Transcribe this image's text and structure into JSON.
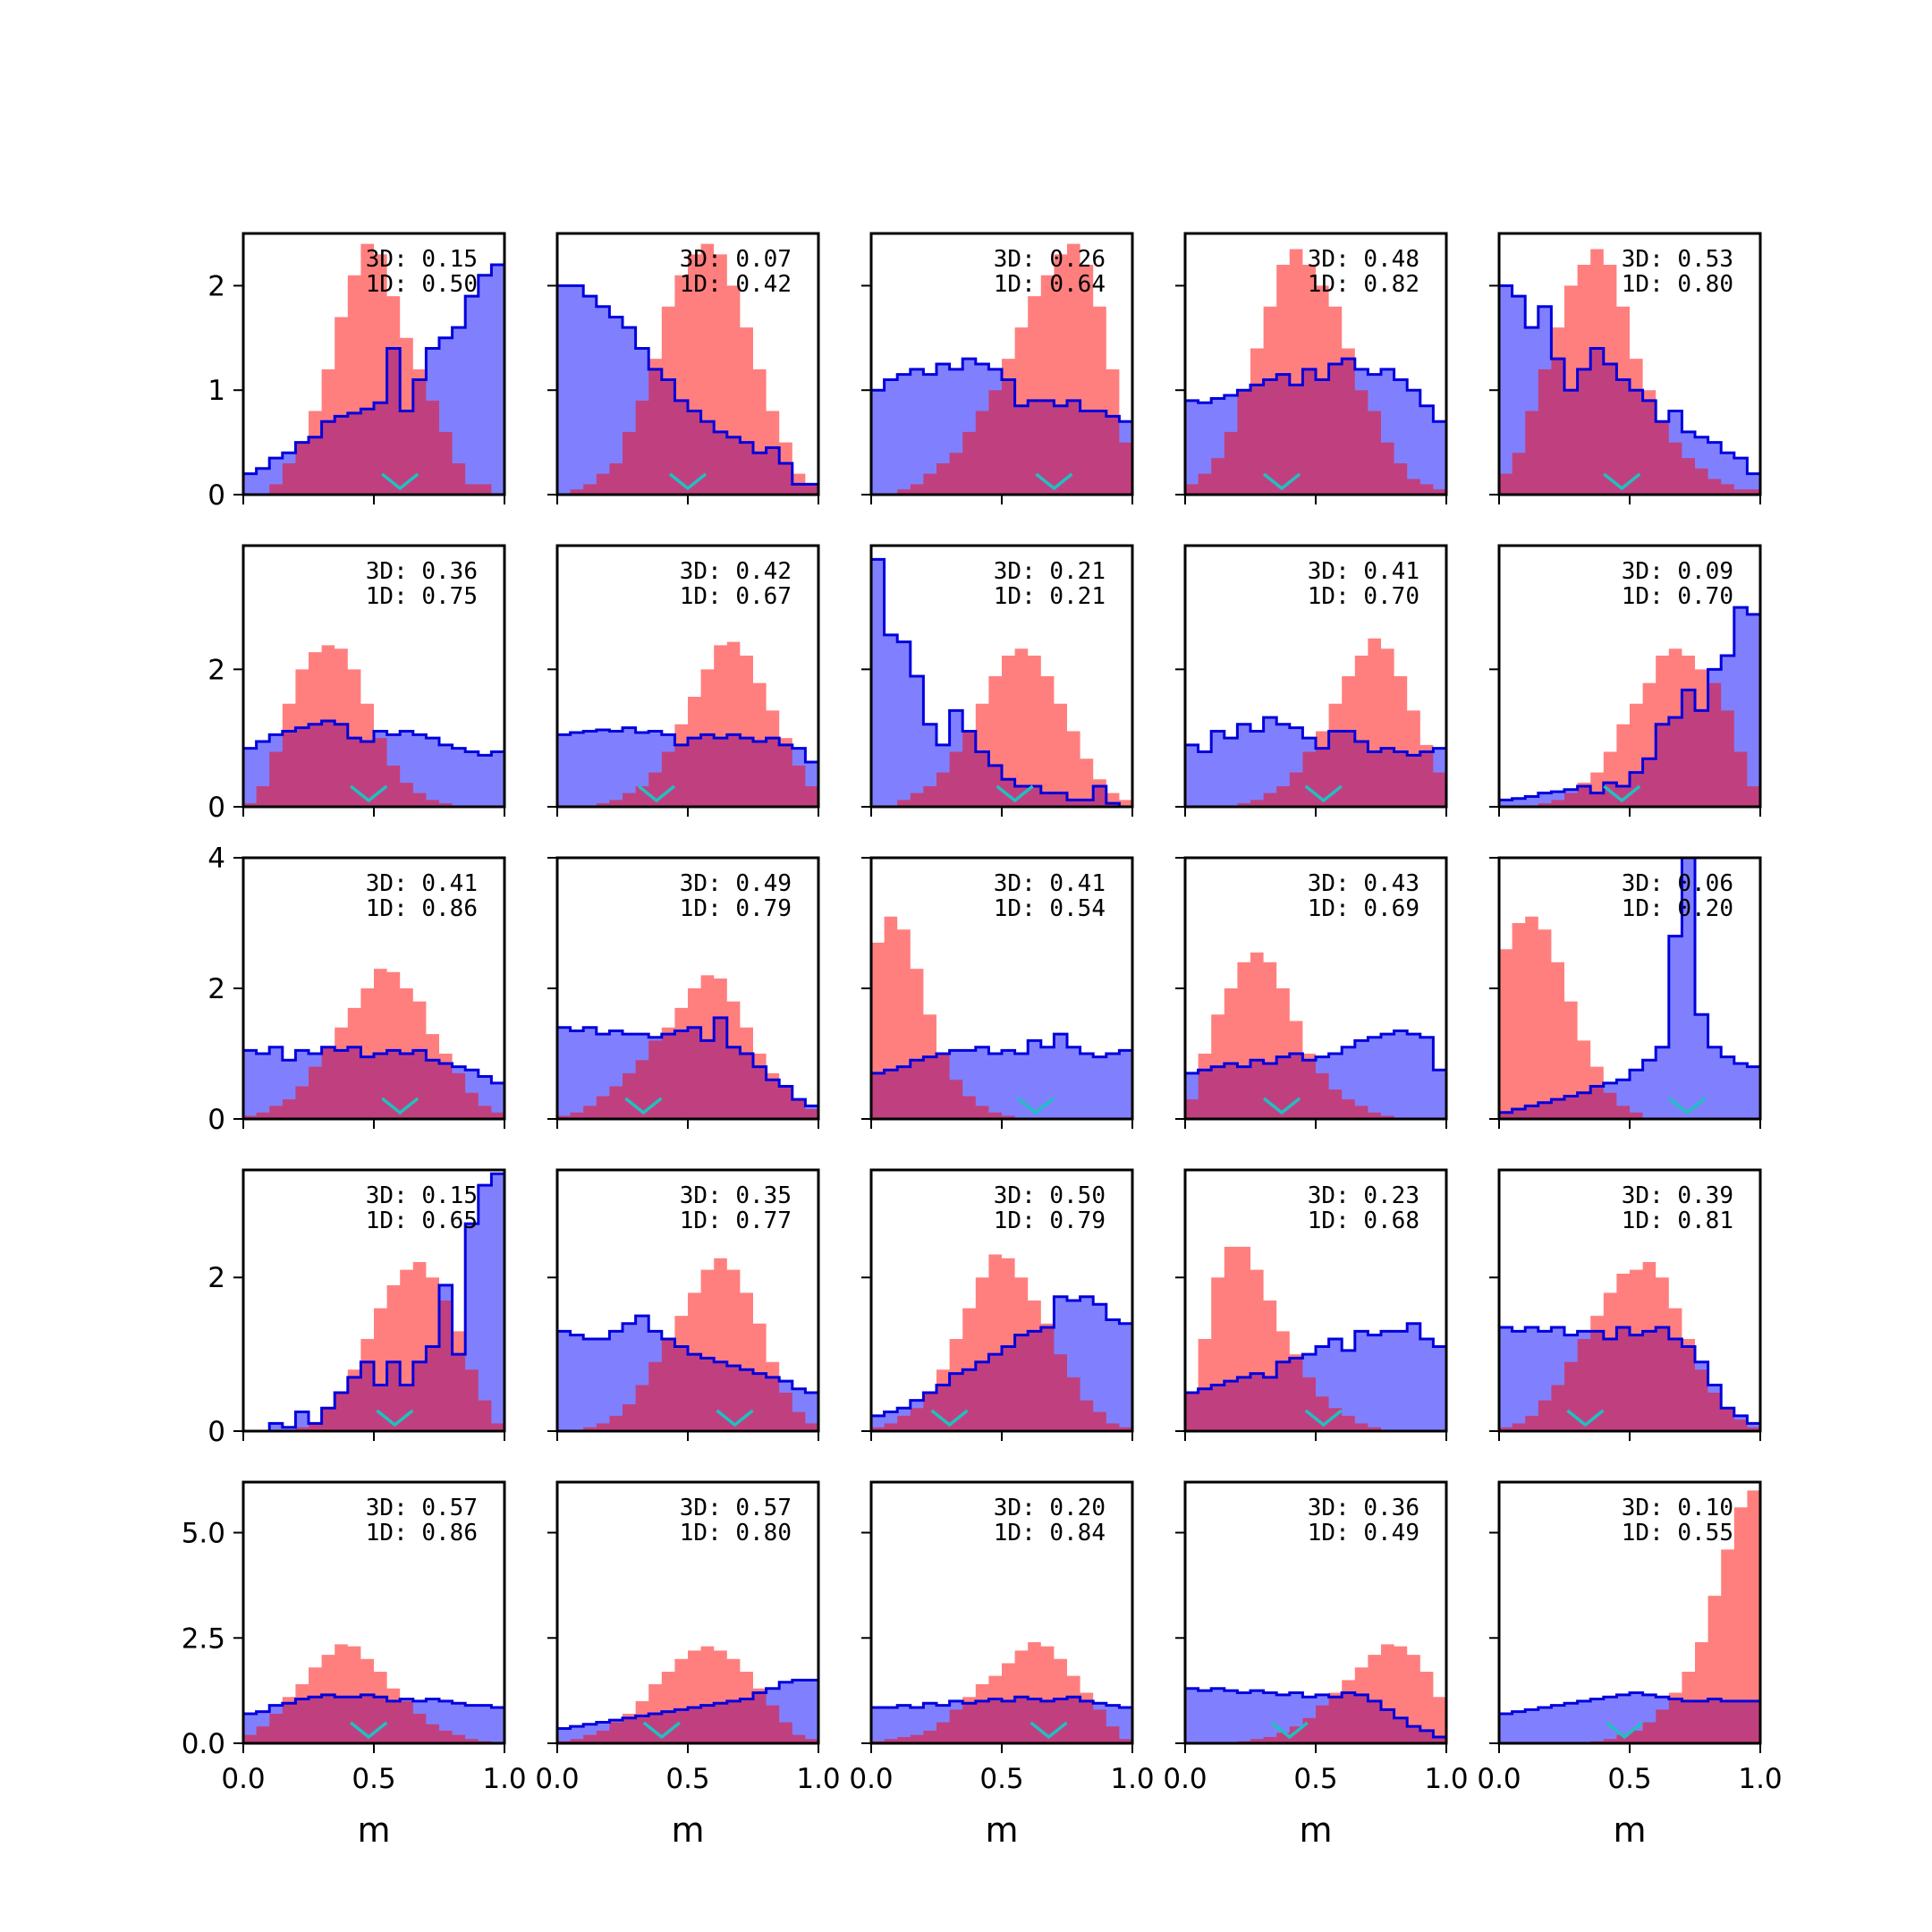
{
  "chart_data": {
    "type": "histogram-grid",
    "rows": 5,
    "cols": 5,
    "xlim": [
      0,
      1
    ],
    "xticks": [
      "0.0",
      "0.5",
      "1.0"
    ],
    "xlabel": "m",
    "row_ylims": [
      [
        0,
        2.5
      ],
      [
        0,
        3.8
      ],
      [
        0,
        4.0
      ],
      [
        0,
        3.4
      ],
      [
        0,
        6.2
      ]
    ],
    "row_yticks": [
      [
        "0",
        "1",
        "2"
      ],
      [
        "0",
        "2"
      ],
      [
        "0",
        "2",
        "4"
      ],
      [
        "0",
        "2"
      ],
      [
        "0.0",
        "2.5",
        "5.0"
      ]
    ],
    "colors": {
      "red_fill": "#ff8080",
      "blue_fill": "#8080ff",
      "blue_line": "#0000dd",
      "marker": "#20c0c0"
    },
    "panels": [
      {
        "label3d": "3D: 0.15",
        "label1d": "1D: 0.50",
        "marker": 0.6,
        "red": [
          0,
          0,
          0.1,
          0.3,
          0.5,
          0.8,
          1.2,
          1.7,
          2.1,
          2.4,
          2.3,
          1.9,
          1.5,
          1.2,
          0.9,
          0.6,
          0.3,
          0.1,
          0.1,
          0
        ],
        "blue": [
          0.2,
          0.25,
          0.35,
          0.4,
          0.5,
          0.55,
          0.7,
          0.75,
          0.78,
          0.82,
          0.88,
          1.4,
          0.8,
          1.1,
          1.4,
          1.5,
          1.6,
          1.9,
          2.1,
          2.2
        ]
      },
      {
        "label3d": "3D: 0.07",
        "label1d": "1D: 0.42",
        "marker": 0.5,
        "red": [
          0,
          0.05,
          0.1,
          0.2,
          0.3,
          0.6,
          0.9,
          1.3,
          1.8,
          2.1,
          2.3,
          2.4,
          2.3,
          2.0,
          1.6,
          1.2,
          0.8,
          0.5,
          0.2,
          0.1
        ],
        "blue": [
          2.0,
          2.0,
          1.9,
          1.8,
          1.7,
          1.6,
          1.4,
          1.2,
          1.1,
          0.9,
          0.8,
          0.7,
          0.6,
          0.55,
          0.5,
          0.4,
          0.45,
          0.3,
          0.1,
          0.1
        ]
      },
      {
        "label3d": "3D: 0.26",
        "label1d": "1D: 0.64",
        "marker": 0.7,
        "red": [
          0,
          0,
          0.05,
          0.1,
          0.2,
          0.3,
          0.4,
          0.6,
          0.8,
          1.0,
          1.3,
          1.6,
          1.9,
          2.1,
          2.3,
          2.4,
          2.2,
          1.8,
          1.2,
          0.5
        ],
        "blue": [
          1.0,
          1.1,
          1.15,
          1.2,
          1.15,
          1.25,
          1.2,
          1.3,
          1.25,
          1.2,
          1.1,
          0.85,
          0.9,
          0.9,
          0.85,
          0.9,
          0.8,
          0.8,
          0.75,
          0.7
        ]
      },
      {
        "label3d": "3D: 0.48",
        "label1d": "1D: 0.82",
        "marker": 0.37,
        "red": [
          0.1,
          0.2,
          0.35,
          0.6,
          1.0,
          1.4,
          1.8,
          2.2,
          2.35,
          2.2,
          2.0,
          1.8,
          1.4,
          1.0,
          0.8,
          0.5,
          0.3,
          0.15,
          0.1,
          0.05
        ],
        "blue": [
          0.9,
          0.88,
          0.92,
          0.95,
          1.0,
          1.05,
          1.1,
          1.15,
          1.05,
          1.2,
          1.1,
          1.25,
          1.3,
          1.2,
          1.15,
          1.2,
          1.1,
          1.0,
          0.85,
          0.7
        ]
      },
      {
        "label3d": "3D: 0.53",
        "label1d": "1D: 0.80",
        "marker": 0.47,
        "red": [
          0.2,
          0.4,
          0.8,
          1.2,
          1.6,
          2.0,
          2.2,
          2.35,
          2.2,
          1.8,
          1.3,
          1.0,
          0.7,
          0.5,
          0.35,
          0.25,
          0.15,
          0.1,
          0.05,
          0.05
        ],
        "blue": [
          2.0,
          1.9,
          1.6,
          1.8,
          1.3,
          1.0,
          1.2,
          1.4,
          1.25,
          1.1,
          1.0,
          0.9,
          0.7,
          0.8,
          0.6,
          0.55,
          0.5,
          0.4,
          0.35,
          0.2
        ]
      },
      {
        "label3d": "3D: 0.36",
        "label1d": "1D: 0.75",
        "marker": 0.48,
        "red": [
          0.05,
          0.3,
          0.8,
          1.5,
          2.0,
          2.25,
          2.35,
          2.3,
          2.0,
          1.5,
          1.0,
          0.6,
          0.35,
          0.2,
          0.1,
          0.05,
          0,
          0,
          0,
          0
        ],
        "blue": [
          0.85,
          0.95,
          1.05,
          1.1,
          1.15,
          1.2,
          1.25,
          1.2,
          1.0,
          0.95,
          1.1,
          1.05,
          1.1,
          1.05,
          1.0,
          0.9,
          0.85,
          0.8,
          0.75,
          0.8
        ]
      },
      {
        "label3d": "3D: 0.42",
        "label1d": "1D: 0.67",
        "marker": 0.38,
        "red": [
          0,
          0,
          0,
          0.05,
          0.1,
          0.2,
          0.3,
          0.5,
          0.8,
          1.2,
          1.6,
          2.0,
          2.35,
          2.4,
          2.2,
          1.8,
          1.4,
          1.0,
          0.6,
          0.3
        ],
        "blue": [
          1.05,
          1.08,
          1.1,
          1.12,
          1.1,
          1.15,
          1.08,
          1.1,
          1.05,
          0.9,
          1.0,
          1.05,
          1.0,
          1.05,
          1.0,
          0.95,
          1.0,
          0.9,
          0.85,
          0.65
        ]
      },
      {
        "label3d": "3D: 0.21",
        "label1d": "1D: 0.21",
        "marker": 0.55,
        "red": [
          0,
          0,
          0.1,
          0.2,
          0.3,
          0.5,
          0.8,
          1.1,
          1.5,
          1.9,
          2.2,
          2.3,
          2.2,
          1.9,
          1.5,
          1.1,
          0.7,
          0.4,
          0.2,
          0.1
        ],
        "blue": [
          3.6,
          2.5,
          2.4,
          1.9,
          1.2,
          0.9,
          1.4,
          1.1,
          0.8,
          0.6,
          0.4,
          0.3,
          0.3,
          0.2,
          0.2,
          0.1,
          0.1,
          0.3,
          0.05,
          0
        ]
      },
      {
        "label3d": "3D: 0.41",
        "label1d": "1D: 0.70",
        "marker": 0.53,
        "red": [
          0,
          0,
          0,
          0,
          0.05,
          0.1,
          0.2,
          0.3,
          0.5,
          0.8,
          1.1,
          1.5,
          1.9,
          2.2,
          2.45,
          2.3,
          1.9,
          1.4,
          0.9,
          0.5
        ],
        "blue": [
          0.9,
          0.8,
          1.1,
          1.0,
          1.2,
          1.1,
          1.3,
          1.2,
          1.15,
          1.0,
          0.85,
          1.1,
          1.1,
          0.95,
          0.8,
          0.85,
          0.8,
          0.75,
          0.8,
          0.85
        ]
      },
      {
        "label3d": "3D: 0.09",
        "label1d": "1D: 0.70",
        "marker": 0.47,
        "red": [
          0,
          0,
          0,
          0.05,
          0.1,
          0.2,
          0.35,
          0.5,
          0.8,
          1.2,
          1.5,
          1.8,
          2.2,
          2.3,
          2.2,
          2.0,
          1.8,
          1.4,
          0.8,
          0.3
        ],
        "blue": [
          0.1,
          0.12,
          0.15,
          0.2,
          0.22,
          0.25,
          0.3,
          0.2,
          0.35,
          0.3,
          0.5,
          0.7,
          1.2,
          1.3,
          1.7,
          1.4,
          2.0,
          2.2,
          2.9,
          2.8
        ]
      },
      {
        "label3d": "3D: 0.41",
        "label1d": "1D: 0.86",
        "marker": 0.6,
        "red": [
          0.05,
          0.1,
          0.2,
          0.3,
          0.5,
          0.8,
          1.1,
          1.4,
          1.7,
          2.0,
          2.3,
          2.25,
          2.0,
          1.8,
          1.3,
          1.0,
          0.7,
          0.4,
          0.2,
          0.1
        ],
        "blue": [
          1.05,
          1.0,
          1.1,
          0.9,
          1.05,
          1.0,
          1.1,
          1.05,
          1.1,
          0.95,
          1.0,
          1.05,
          1.0,
          1.05,
          0.9,
          0.85,
          0.8,
          0.75,
          0.65,
          0.55
        ]
      },
      {
        "label3d": "3D: 0.49",
        "label1d": "1D: 0.79",
        "marker": 0.33,
        "red": [
          0.05,
          0.1,
          0.2,
          0.35,
          0.5,
          0.7,
          0.9,
          1.2,
          1.4,
          1.7,
          2.0,
          2.2,
          2.15,
          1.8,
          1.4,
          1.0,
          0.7,
          0.5,
          0.3,
          0.15
        ],
        "blue": [
          1.4,
          1.35,
          1.4,
          1.3,
          1.35,
          1.3,
          1.3,
          1.25,
          1.3,
          1.35,
          1.4,
          1.2,
          1.55,
          1.1,
          1.0,
          0.8,
          0.6,
          0.5,
          0.3,
          0.2
        ]
      },
      {
        "label3d": "3D: 0.41",
        "label1d": "1D: 0.54",
        "marker": 0.63,
        "red": [
          2.7,
          3.1,
          2.9,
          2.3,
          1.6,
          1.0,
          0.6,
          0.35,
          0.2,
          0.1,
          0.05,
          0,
          0,
          0,
          0,
          0,
          0,
          0,
          0,
          0
        ],
        "blue": [
          0.7,
          0.75,
          0.8,
          0.9,
          0.95,
          1.0,
          1.05,
          1.05,
          1.1,
          1.0,
          1.05,
          1.0,
          1.2,
          1.1,
          1.3,
          1.1,
          1.0,
          0.95,
          1.0,
          1.05
        ]
      },
      {
        "label3d": "3D: 0.43",
        "label1d": "1D: 0.69",
        "marker": 0.37,
        "red": [
          0.3,
          1.0,
          1.6,
          2.0,
          2.4,
          2.55,
          2.4,
          2.0,
          1.5,
          1.0,
          0.7,
          0.45,
          0.3,
          0.2,
          0.1,
          0.05,
          0,
          0,
          0,
          0
        ],
        "blue": [
          0.7,
          0.75,
          0.8,
          0.85,
          0.8,
          0.9,
          0.85,
          0.95,
          1.0,
          0.9,
          0.95,
          1.0,
          1.1,
          1.2,
          1.25,
          1.3,
          1.35,
          1.3,
          1.25,
          0.75
        ]
      },
      {
        "label3d": "3D: 0.06",
        "label1d": "1D: 0.20",
        "marker": 0.72,
        "red": [
          2.6,
          3.0,
          3.1,
          2.9,
          2.4,
          1.8,
          1.2,
          0.8,
          0.4,
          0.2,
          0.1,
          0,
          0,
          0,
          0,
          0,
          0,
          0,
          0,
          0
        ],
        "blue": [
          0.1,
          0.15,
          0.2,
          0.25,
          0.3,
          0.35,
          0.4,
          0.5,
          0.55,
          0.6,
          0.75,
          0.9,
          1.1,
          2.8,
          4.05,
          1.6,
          1.1,
          0.95,
          0.85,
          0.8
        ]
      },
      {
        "label3d": "3D: 0.15",
        "label1d": "1D: 0.65",
        "marker": 0.58,
        "red": [
          0,
          0,
          0,
          0,
          0.05,
          0.1,
          0.3,
          0.5,
          0.8,
          1.2,
          1.6,
          1.9,
          2.1,
          2.2,
          2.0,
          1.7,
          1.3,
          0.8,
          0.4,
          0.1
        ],
        "blue": [
          0,
          0,
          0.1,
          0.05,
          0.25,
          0.1,
          0.3,
          0.5,
          0.7,
          0.9,
          0.6,
          0.9,
          0.6,
          0.9,
          1.1,
          1.9,
          1.0,
          2.7,
          3.2,
          3.35
        ]
      },
      {
        "label3d": "3D: 0.35",
        "label1d": "1D: 0.77",
        "marker": 0.68,
        "red": [
          0,
          0,
          0.05,
          0.1,
          0.2,
          0.35,
          0.6,
          0.9,
          1.2,
          1.5,
          1.8,
          2.1,
          2.25,
          2.1,
          1.8,
          1.4,
          0.9,
          0.5,
          0.25,
          0.1
        ],
        "blue": [
          1.3,
          1.25,
          1.2,
          1.2,
          1.3,
          1.4,
          1.5,
          1.3,
          1.2,
          1.1,
          1.0,
          0.95,
          0.9,
          0.85,
          0.8,
          0.75,
          0.7,
          0.65,
          0.55,
          0.5
        ]
      },
      {
        "label3d": "3D: 0.50",
        "label1d": "1D: 0.79",
        "marker": 0.3,
        "red": [
          0.05,
          0.1,
          0.2,
          0.3,
          0.5,
          0.8,
          1.2,
          1.6,
          2.0,
          2.3,
          2.25,
          2.0,
          1.7,
          1.4,
          1.0,
          0.7,
          0.4,
          0.25,
          0.1,
          0.05
        ],
        "blue": [
          0.2,
          0.25,
          0.3,
          0.4,
          0.5,
          0.6,
          0.75,
          0.8,
          0.9,
          1.0,
          1.1,
          1.25,
          1.3,
          1.35,
          1.75,
          1.7,
          1.75,
          1.65,
          1.45,
          1.4
        ]
      },
      {
        "label3d": "3D: 0.23",
        "label1d": "1D: 0.68",
        "marker": 0.53,
        "red": [
          0.5,
          1.2,
          2.0,
          2.4,
          2.4,
          2.1,
          1.7,
          1.3,
          1.0,
          0.7,
          0.45,
          0.3,
          0.2,
          0.1,
          0.05,
          0,
          0,
          0,
          0,
          0
        ],
        "blue": [
          0.5,
          0.55,
          0.6,
          0.65,
          0.7,
          0.75,
          0.7,
          0.9,
          0.95,
          1.0,
          1.1,
          1.2,
          1.05,
          1.3,
          1.25,
          1.3,
          1.3,
          1.4,
          1.2,
          1.1
        ]
      },
      {
        "label3d": "3D: 0.39",
        "label1d": "1D: 0.81",
        "marker": 0.33,
        "red": [
          0.05,
          0.1,
          0.2,
          0.4,
          0.6,
          0.9,
          1.2,
          1.5,
          1.8,
          2.05,
          2.1,
          2.2,
          2.0,
          1.6,
          1.2,
          0.8,
          0.5,
          0.3,
          0.15,
          0.05
        ],
        "blue": [
          1.35,
          1.3,
          1.35,
          1.3,
          1.35,
          1.25,
          1.3,
          1.3,
          1.2,
          1.35,
          1.25,
          1.3,
          1.35,
          1.2,
          1.1,
          0.9,
          0.6,
          0.3,
          0.2,
          0.1
        ]
      },
      {
        "label3d": "3D: 0.57",
        "label1d": "1D: 0.86",
        "marker": 0.48,
        "red": [
          0.2,
          0.4,
          0.7,
          1.1,
          1.4,
          1.8,
          2.1,
          2.35,
          2.3,
          2.0,
          1.7,
          1.3,
          1.0,
          0.7,
          0.45,
          0.3,
          0.2,
          0.1,
          0.05,
          0
        ],
        "blue": [
          0.7,
          0.75,
          0.9,
          0.95,
          1.05,
          1.1,
          1.15,
          1.1,
          1.1,
          1.15,
          1.1,
          1.0,
          1.05,
          1.0,
          1.05,
          1.0,
          0.95,
          0.9,
          0.9,
          0.85
        ]
      },
      {
        "label3d": "3D: 0.57",
        "label1d": "1D: 0.80",
        "marker": 0.4,
        "red": [
          0.05,
          0.1,
          0.2,
          0.3,
          0.5,
          0.7,
          1.0,
          1.4,
          1.7,
          2.0,
          2.2,
          2.3,
          2.2,
          2.0,
          1.7,
          1.3,
          0.9,
          0.5,
          0.2,
          0.1
        ],
        "blue": [
          0.35,
          0.4,
          0.45,
          0.5,
          0.55,
          0.6,
          0.65,
          0.7,
          0.75,
          0.8,
          0.85,
          0.9,
          0.95,
          1.0,
          1.05,
          1.2,
          1.3,
          1.45,
          1.5,
          1.5
        ]
      },
      {
        "label3d": "3D: 0.20",
        "label1d": "1D: 0.84",
        "marker": 0.68,
        "red": [
          0.05,
          0.1,
          0.15,
          0.2,
          0.3,
          0.5,
          0.8,
          1.1,
          1.4,
          1.6,
          1.9,
          2.2,
          2.4,
          2.3,
          2.0,
          1.6,
          1.2,
          0.8,
          0.4,
          0.1
        ],
        "blue": [
          0.85,
          0.85,
          0.9,
          0.85,
          0.95,
          0.9,
          1.0,
          0.95,
          1.0,
          1.05,
          1.0,
          1.1,
          1.05,
          1.0,
          1.05,
          1.1,
          1.0,
          0.95,
          0.9,
          0.85
        ]
      },
      {
        "label3d": "3D: 0.36",
        "label1d": "1D: 0.49",
        "marker": 0.4,
        "red": [
          0,
          0,
          0,
          0,
          0.05,
          0.1,
          0.15,
          0.25,
          0.4,
          0.6,
          0.9,
          1.2,
          1.5,
          1.8,
          2.1,
          2.35,
          2.3,
          2.1,
          1.7,
          1.1
        ],
        "blue": [
          1.3,
          1.25,
          1.3,
          1.25,
          1.2,
          1.25,
          1.2,
          1.15,
          1.2,
          1.1,
          1.15,
          1.1,
          1.2,
          1.15,
          1.0,
          0.8,
          0.6,
          0.4,
          0.3,
          0.15
        ]
      },
      {
        "label3d": "3D: 0.10",
        "label1d": "1D: 0.55",
        "marker": 0.48,
        "red": [
          0,
          0,
          0,
          0,
          0,
          0,
          0,
          0.05,
          0.1,
          0.2,
          0.3,
          0.5,
          0.8,
          1.2,
          1.7,
          2.4,
          3.5,
          4.6,
          5.6,
          6.0
        ],
        "blue": [
          0.7,
          0.75,
          0.8,
          0.85,
          0.9,
          0.95,
          1.0,
          1.05,
          1.1,
          1.15,
          1.2,
          1.15,
          1.1,
          1.05,
          1.0,
          1.0,
          1.05,
          1.0,
          1.0,
          1.0
        ]
      }
    ]
  }
}
